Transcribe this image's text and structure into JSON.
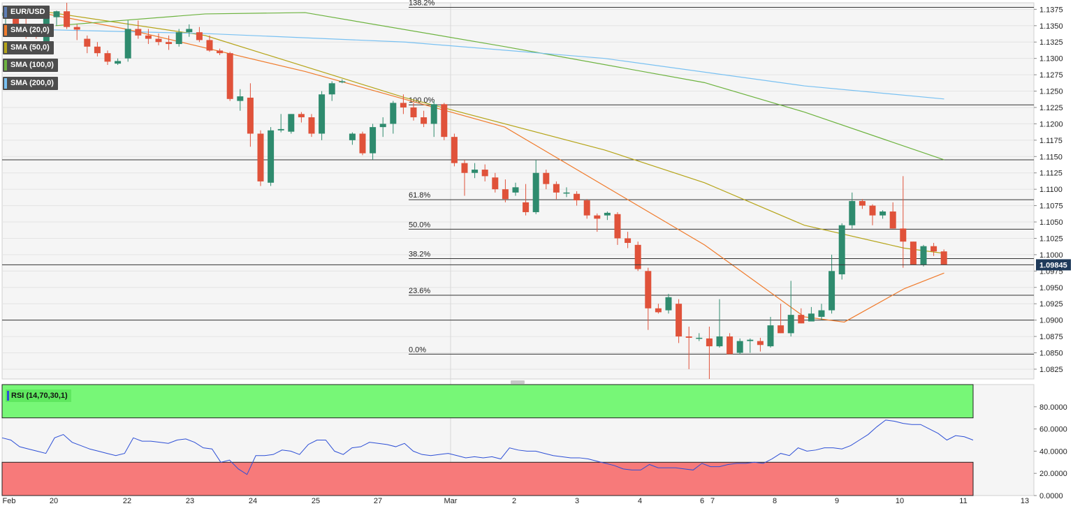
{
  "symbol": "EUR/USD",
  "indicators": [
    {
      "label": "SMA (20,0)",
      "color": "#f07b2c"
    },
    {
      "label": "SMA (50,0)",
      "color": "#b5a418"
    },
    {
      "label": "SMA (100,0)",
      "color": "#6db33f"
    },
    {
      "label": "SMA (200,0)",
      "color": "#79c1f2"
    }
  ],
  "rsi_label": "RSI (14,70,30,1)",
  "current_price_label": "1.09845",
  "colors": {
    "up": "#2e8b6e",
    "down": "#e0523a",
    "grid": "#e4e4e4",
    "background": "#f5f5f5",
    "rsi_line": "#2d4fd6",
    "rsi_overbought": "#77f777",
    "rsi_oversold": "#f77a7a"
  },
  "chart_data": [
    {
      "type": "candlestick",
      "ylim": [
        1.081,
        1.1385
      ],
      "yticks": [
        "1.1375",
        "1.1350",
        "1.1325",
        "1.1300",
        "1.1275",
        "1.1250",
        "1.1225",
        "1.1200",
        "1.1175",
        "1.1150",
        "1.1125",
        "1.1100",
        "1.1075",
        "1.1050",
        "1.1025",
        "1.1000",
        "1.0975",
        "1.0950",
        "1.0925",
        "1.0900",
        "1.0875",
        "1.0850",
        "1.0825"
      ],
      "xlabels": [
        "Feb",
        "20",
        "22",
        "23",
        "24",
        "25",
        "27",
        "Mar",
        "2",
        "3",
        "4",
        "6",
        "7",
        "8",
        "9",
        "10",
        "11",
        "13"
      ],
      "grid": true,
      "ohlc": [
        [
          1.1365,
          1.1378,
          1.1345,
          1.137
        ],
        [
          1.137,
          1.1375,
          1.134,
          1.135
        ],
        [
          1.135,
          1.1368,
          1.133,
          1.1345
        ],
        [
          1.1345,
          1.1352,
          1.133,
          1.134
        ],
        [
          1.132,
          1.1368,
          1.1315,
          1.1363
        ],
        [
          1.1363,
          1.1373,
          1.135,
          1.1372
        ],
        [
          1.1372,
          1.1385,
          1.1345,
          1.1348
        ],
        [
          1.1348,
          1.1352,
          1.1328,
          1.1344
        ],
        [
          1.133,
          1.1335,
          1.1308,
          1.1318
        ],
        [
          1.1318,
          1.1325,
          1.1303,
          1.1308
        ],
        [
          1.1308,
          1.1312,
          1.129,
          1.1295
        ],
        [
          1.1292,
          1.13,
          1.129,
          1.1296
        ],
        [
          1.13,
          1.1358,
          1.1295,
          1.1345
        ],
        [
          1.1345,
          1.1358,
          1.133,
          1.1335
        ],
        [
          1.1335,
          1.1345,
          1.1322,
          1.133
        ],
        [
          1.133,
          1.1338,
          1.132,
          1.1325
        ],
        [
          1.1325,
          1.1335,
          1.1313,
          1.1322
        ],
        [
          1.1322,
          1.1345,
          1.1318,
          1.134
        ],
        [
          1.134,
          1.1352,
          1.1333,
          1.1345
        ],
        [
          1.134,
          1.1348,
          1.1325,
          1.1328
        ],
        [
          1.1328,
          1.1335,
          1.131,
          1.1312
        ],
        [
          1.1312,
          1.1315,
          1.1305,
          1.1308
        ],
        [
          1.1308,
          1.131,
          1.1235,
          1.1238
        ],
        [
          1.1235,
          1.1253,
          1.122,
          1.1242
        ],
        [
          1.124,
          1.1262,
          1.1165,
          1.1185
        ],
        [
          1.1185,
          1.119,
          1.1105,
          1.1112
        ],
        [
          1.111,
          1.1195,
          1.1105,
          1.119
        ],
        [
          1.119,
          1.1215,
          1.1187,
          1.1192
        ],
        [
          1.1188,
          1.1215,
          1.1185,
          1.1215
        ],
        [
          1.1215,
          1.1218,
          1.1202,
          1.121
        ],
        [
          1.121,
          1.1215,
          1.118,
          1.1185
        ],
        [
          1.1185,
          1.125,
          1.1175,
          1.1245
        ],
        [
          1.1245,
          1.1265,
          1.1235,
          1.1262
        ],
        [
          1.1265,
          1.1268,
          1.1262,
          1.1265
        ],
        [
          1.1175,
          1.1187,
          1.1168,
          1.1185
        ],
        [
          1.1185,
          1.1188,
          1.1152,
          1.1155
        ],
        [
          1.1155,
          1.12,
          1.1145,
          1.1195
        ],
        [
          1.1195,
          1.121,
          1.118,
          1.12
        ],
        [
          1.12,
          1.1235,
          1.1185,
          1.1232
        ],
        [
          1.1232,
          1.1245,
          1.1215,
          1.1225
        ],
        [
          1.1225,
          1.1232,
          1.1205,
          1.121
        ],
        [
          1.121,
          1.122,
          1.1195,
          1.12
        ],
        [
          1.12,
          1.1235,
          1.118,
          1.123
        ],
        [
          1.123,
          1.1232,
          1.1175,
          1.118
        ],
        [
          1.118,
          1.1185,
          1.1135,
          1.114
        ],
        [
          1.114,
          1.1145,
          1.109,
          1.1125
        ],
        [
          1.1125,
          1.114,
          1.1117,
          1.113
        ],
        [
          1.113,
          1.1138,
          1.1112,
          1.112
        ],
        [
          1.1118,
          1.1125,
          1.1095,
          1.11
        ],
        [
          1.11,
          1.1115,
          1.108,
          1.1085
        ],
        [
          1.1095,
          1.111,
          1.109,
          1.1103
        ],
        [
          1.108,
          1.1108,
          1.106,
          1.1065
        ],
        [
          1.1065,
          1.1145,
          1.1062,
          1.1125
        ],
        [
          1.1125,
          1.113,
          1.11,
          1.1108
        ],
        [
          1.1108,
          1.1112,
          1.1085,
          1.1095
        ],
        [
          1.1095,
          1.1103,
          1.1088,
          1.1095
        ],
        [
          1.1093,
          1.1097,
          1.1075,
          1.1083
        ],
        [
          1.1083,
          1.1085,
          1.1055,
          1.106
        ],
        [
          1.106,
          1.1063,
          1.1035,
          1.1055
        ],
        [
          1.106,
          1.1066,
          1.1053,
          1.1064
        ],
        [
          1.1062,
          1.1065,
          1.1015,
          1.1025
        ],
        [
          1.1025,
          1.1035,
          1.101,
          1.1018
        ],
        [
          1.1015,
          1.102,
          1.0975,
          1.0978
        ],
        [
          1.0975,
          1.098,
          1.0885,
          1.0918
        ],
        [
          1.0918,
          1.0925,
          1.091,
          1.0912
        ],
        [
          1.0915,
          1.094,
          1.091,
          1.0935
        ],
        [
          1.0925,
          1.0932,
          1.0865,
          1.0875
        ],
        [
          1.0875,
          1.089,
          1.0825,
          1.0873
        ],
        [
          1.0873,
          1.088,
          1.0868,
          1.0873
        ],
        [
          1.0872,
          1.089,
          1.081,
          1.086
        ],
        [
          1.086,
          1.0932,
          1.0858,
          1.0875
        ],
        [
          1.0875,
          1.088,
          1.0848,
          1.0848
        ],
        [
          1.085,
          1.0872,
          1.0848,
          1.0868
        ],
        [
          1.0868,
          1.0872,
          1.085,
          1.087
        ],
        [
          1.0868,
          1.0873,
          1.0852,
          1.0862
        ],
        [
          1.086,
          1.0905,
          1.0858,
          1.0892
        ],
        [
          1.0892,
          1.0925,
          1.088,
          1.088
        ],
        [
          1.088,
          1.096,
          1.0875,
          1.0908
        ],
        [
          1.0908,
          1.0918,
          1.0895,
          1.0895
        ],
        [
          1.0898,
          1.092,
          1.0898,
          1.091
        ],
        [
          1.0905,
          1.0925,
          1.09,
          1.0915
        ],
        [
          1.0915,
          1.1,
          1.091,
          1.0975
        ],
        [
          1.097,
          1.1048,
          1.0962,
          1.1045
        ],
        [
          1.1045,
          1.1095,
          1.104,
          1.1082
        ],
        [
          1.1082,
          1.1085,
          1.107,
          1.1075
        ],
        [
          1.1075,
          1.1077,
          1.1045,
          1.106
        ],
        [
          1.106,
          1.1068,
          1.1055,
          1.1066
        ],
        [
          1.1066,
          1.108,
          1.104,
          1.104
        ],
        [
          1.104,
          1.112,
          1.098,
          1.102
        ],
        [
          1.102,
          1.102,
          1.0985,
          1.0985
        ],
        [
          1.0985,
          1.1015,
          1.0982,
          1.1013
        ],
        [
          1.1013,
          1.1018,
          1.0998,
          1.1005
        ],
        [
          1.1005,
          1.1008,
          1.0985,
          1.0985
        ]
      ],
      "sma": {
        "SMA (20,0)": [
          [
            1,
            1.1377
          ],
          [
            12,
            1.1345
          ],
          [
            30,
            1.128
          ],
          [
            50,
            1.1195
          ],
          [
            70,
            1.1015
          ],
          [
            80,
            1.0905
          ],
          [
            84,
            1.0897
          ],
          [
            90,
            1.0948
          ],
          [
            94,
            1.0972
          ]
        ],
        "SMA (50,0)": [
          [
            1,
            1.1378
          ],
          [
            20,
            1.1335
          ],
          [
            40,
            1.124
          ],
          [
            60,
            1.116
          ],
          [
            70,
            1.111
          ],
          [
            80,
            1.1045
          ],
          [
            90,
            1.101
          ],
          [
            94,
            1.1002
          ]
        ],
        "SMA (100,0)": [
          [
            5,
            1.135
          ],
          [
            20,
            1.1368
          ],
          [
            30,
            1.137
          ],
          [
            50,
            1.1318
          ],
          [
            70,
            1.1263
          ],
          [
            80,
            1.1218
          ],
          [
            94,
            1.1145
          ]
        ],
        "SMA (200,0)": [
          [
            1,
            1.1345
          ],
          [
            20,
            1.1338
          ],
          [
            40,
            1.1325
          ],
          [
            60,
            1.13
          ],
          [
            80,
            1.1258
          ],
          [
            94,
            1.1238
          ]
        ]
      },
      "fibonacci": [
        {
          "label": "138.2%",
          "value": 1.1378
        },
        {
          "label": "100.0%",
          "value": 1.1229
        },
        {
          "label": "61.8%",
          "value": 1.1084
        },
        {
          "label": "50.0%",
          "value": 1.1039
        },
        {
          "label": "38.2%",
          "value": 1.0994
        },
        {
          "label": "23.6%",
          "value": 1.0938
        },
        {
          "label": "0.0%",
          "value": 1.0848
        }
      ],
      "horizontal_lines": [
        1.1145,
        1.09
      ],
      "current_price": 1.09845
    },
    {
      "type": "line",
      "title": "RSI (14,70,30,1)",
      "ylim": [
        0,
        100
      ],
      "yticks": [
        "80.0000",
        "60.0000",
        "40.0000",
        "20.0000",
        "0.0000"
      ],
      "overbought": 70,
      "oversold": 30,
      "values": [
        52,
        50,
        44,
        42,
        40,
        38,
        52,
        55,
        48,
        45,
        42,
        40,
        38,
        36,
        38,
        52,
        49,
        49,
        48,
        47,
        50,
        51,
        48,
        43,
        42,
        30,
        32,
        24,
        19,
        36,
        36,
        37,
        41,
        40,
        37,
        46,
        50,
        50,
        40,
        37,
        43,
        44,
        48,
        47,
        46,
        44,
        47,
        40,
        37,
        36,
        37,
        38,
        36,
        34,
        35,
        34,
        35,
        33,
        43,
        41,
        40,
        40,
        38,
        36,
        35,
        34,
        34,
        33,
        31,
        29,
        27,
        24,
        23,
        23,
        28,
        25,
        25,
        25,
        24,
        23,
        29,
        26,
        26,
        28,
        29,
        29,
        30,
        29,
        33,
        38,
        36,
        43,
        40,
        41,
        43,
        43,
        42,
        45,
        50,
        55,
        62,
        68,
        67,
        65,
        64,
        64,
        60,
        56,
        50,
        54,
        53,
        50
      ]
    }
  ]
}
